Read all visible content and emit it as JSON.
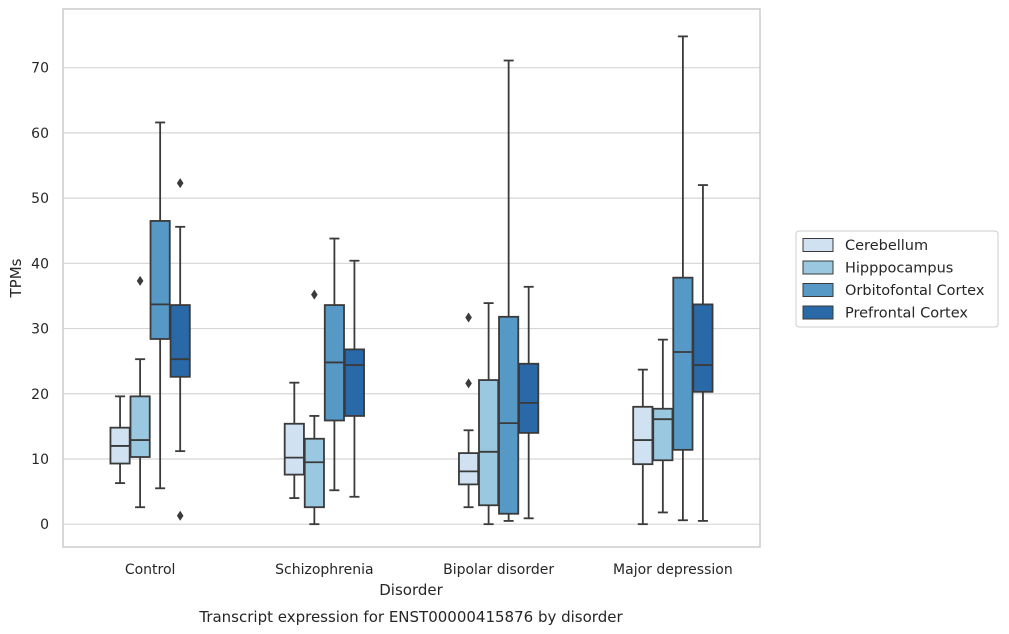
{
  "chart_data": {
    "type": "boxplot",
    "title": "Transcript expression for ENST00000415876 by disorder",
    "xlabel": "Disorder",
    "ylabel": "TPMs",
    "ylim": [
      -3.5,
      79
    ],
    "yticks": [
      0,
      10,
      20,
      30,
      40,
      50,
      60,
      70
    ],
    "grid": "horizontal",
    "legend_position": "right",
    "categories": [
      "Control",
      "Schizophrenia",
      "Bipolar disorder",
      "Major depression"
    ],
    "series": [
      {
        "name": "Cerebellum",
        "color": "#d0e2f2",
        "boxes": [
          {
            "whisker_low": 6.3,
            "q1": 9.3,
            "median": 12.0,
            "q3": 14.8,
            "whisker_high": 19.6,
            "outliers": []
          },
          {
            "whisker_low": 4.0,
            "q1": 7.6,
            "median": 10.2,
            "q3": 15.4,
            "whisker_high": 21.7,
            "outliers": []
          },
          {
            "whisker_low": 2.6,
            "q1": 6.1,
            "median": 8.1,
            "q3": 10.9,
            "whisker_high": 14.4,
            "outliers": [
              21.6,
              31.7
            ]
          },
          {
            "whisker_low": 0.0,
            "q1": 9.2,
            "median": 12.9,
            "q3": 18.0,
            "whisker_high": 23.7,
            "outliers": []
          }
        ]
      },
      {
        "name": "Hipppocampus",
        "color": "#9ac8e0",
        "boxes": [
          {
            "whisker_low": 2.6,
            "q1": 10.3,
            "median": 12.9,
            "q3": 19.6,
            "whisker_high": 25.3,
            "outliers": [
              37.3
            ]
          },
          {
            "whisker_low": 0.0,
            "q1": 2.6,
            "median": 9.5,
            "q3": 13.1,
            "whisker_high": 16.6,
            "outliers": [
              35.2
            ]
          },
          {
            "whisker_low": 0.0,
            "q1": 2.9,
            "median": 11.1,
            "q3": 22.1,
            "whisker_high": 33.9,
            "outliers": []
          },
          {
            "whisker_low": 1.8,
            "q1": 9.8,
            "median": 16.1,
            "q3": 17.7,
            "whisker_high": 28.3,
            "outliers": []
          }
        ]
      },
      {
        "name": "Orbitofontal Cortex",
        "color": "#5698c6",
        "boxes": [
          {
            "whisker_low": 5.5,
            "q1": 28.4,
            "median": 33.7,
            "q3": 46.5,
            "whisker_high": 61.6,
            "outliers": []
          },
          {
            "whisker_low": 5.2,
            "q1": 15.9,
            "median": 24.8,
            "q3": 33.6,
            "whisker_high": 43.8,
            "outliers": []
          },
          {
            "whisker_low": 0.5,
            "q1": 1.6,
            "median": 15.5,
            "q3": 31.8,
            "whisker_high": 71.1,
            "outliers": []
          },
          {
            "whisker_low": 0.6,
            "q1": 11.4,
            "median": 26.4,
            "q3": 37.8,
            "whisker_high": 74.8,
            "outliers": []
          }
        ]
      },
      {
        "name": "Prefrontal Cortex",
        "color": "#2a69a8",
        "boxes": [
          {
            "whisker_low": 11.2,
            "q1": 22.6,
            "median": 25.3,
            "q3": 33.6,
            "whisker_high": 45.6,
            "outliers": [
              1.3,
              52.3
            ]
          },
          {
            "whisker_low": 4.2,
            "q1": 16.6,
            "median": 24.4,
            "q3": 26.8,
            "whisker_high": 40.4,
            "outliers": []
          },
          {
            "whisker_low": 0.9,
            "q1": 14.0,
            "median": 18.6,
            "q3": 24.6,
            "whisker_high": 36.4,
            "outliers": []
          },
          {
            "whisker_low": 0.5,
            "q1": 20.3,
            "median": 24.4,
            "q3": 33.7,
            "whisker_high": 52.0,
            "outliers": []
          }
        ]
      }
    ]
  }
}
